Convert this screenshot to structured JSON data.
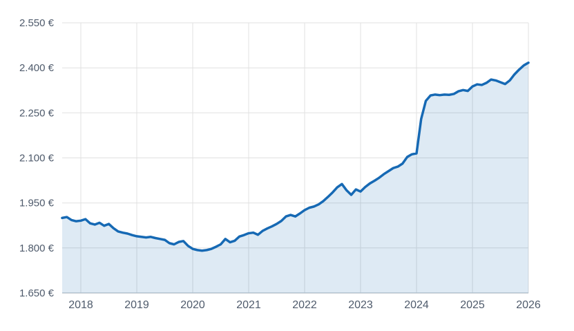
{
  "chart_data": {
    "type": "area",
    "title": "",
    "unit": "EUR",
    "frequency": "monthly",
    "x_start_decimal_year": 2017.6667,
    "xlim": [
      2017.6667,
      2026.0
    ],
    "ylim": [
      1650,
      2550
    ],
    "grid": true,
    "legend": "none",
    "y_axis": {
      "tick_values": [
        2550,
        2400,
        2250,
        2100,
        1950,
        1800,
        1650
      ],
      "tick_labels": [
        "2.550 €",
        "2.400 €",
        "2.250 €",
        "2.100 €",
        "1.950 €",
        "1.800 €",
        "1.650 €"
      ]
    },
    "x_axis": {
      "tick_values": [
        2018,
        2019,
        2020,
        2021,
        2022,
        2023,
        2024,
        2025,
        2026
      ],
      "tick_labels": [
        "2018",
        "2019",
        "2020",
        "2021",
        "2022",
        "2023",
        "2024",
        "2025",
        "2026"
      ]
    },
    "series": [
      {
        "name": "price-eur",
        "start": "2017-09",
        "values": [
          1900,
          1903,
          1893,
          1889,
          1891,
          1896,
          1882,
          1878,
          1884,
          1874,
          1880,
          1866,
          1855,
          1851,
          1848,
          1843,
          1839,
          1837,
          1835,
          1837,
          1833,
          1830,
          1827,
          1816,
          1812,
          1820,
          1823,
          1807,
          1797,
          1793,
          1791,
          1793,
          1797,
          1804,
          1812,
          1830,
          1819,
          1824,
          1838,
          1843,
          1849,
          1851,
          1844,
          1857,
          1865,
          1872,
          1880,
          1890,
          1905,
          1910,
          1905,
          1915,
          1926,
          1934,
          1938,
          1945,
          1956,
          1970,
          1985,
          2002,
          2013,
          1992,
          1977,
          1995,
          1988,
          2003,
          2015,
          2024,
          2034,
          2046,
          2056,
          2066,
          2071,
          2081,
          2103,
          2112,
          2115,
          2230,
          2290,
          2308,
          2311,
          2309,
          2311,
          2310,
          2313,
          2322,
          2326,
          2323,
          2338,
          2345,
          2343,
          2350,
          2361,
          2358,
          2352,
          2346,
          2358,
          2378,
          2394,
          2408,
          2417
        ]
      }
    ],
    "colors": {
      "line": "#1669b4",
      "area_fill": "rgba(22, 105, 180, 0.14)",
      "gridline": "#e0e0e0",
      "axis_line": "#c2c8cf",
      "tick_text": "#4e5a6b"
    }
  }
}
